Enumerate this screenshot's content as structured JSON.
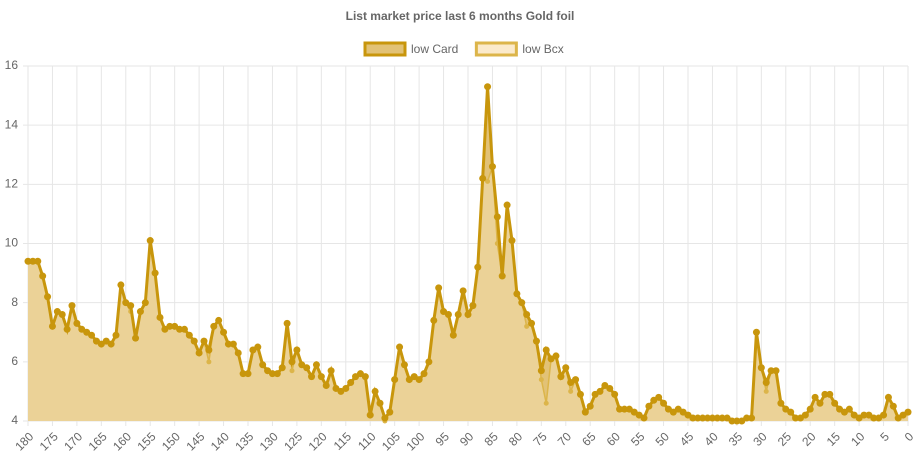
{
  "chart_data": {
    "type": "line",
    "title": "List market price last 6 months Gold foil",
    "x": [
      180,
      179,
      178,
      177,
      176,
      175,
      174,
      173,
      172,
      171,
      170,
      169,
      168,
      167,
      166,
      165,
      164,
      163,
      162,
      161,
      160,
      159,
      158,
      157,
      156,
      155,
      154,
      153,
      152,
      151,
      150,
      149,
      148,
      147,
      146,
      145,
      144,
      143,
      142,
      141,
      140,
      139,
      138,
      137,
      136,
      135,
      134,
      133,
      132,
      131,
      130,
      129,
      128,
      127,
      126,
      125,
      124,
      123,
      122,
      121,
      120,
      119,
      118,
      117,
      116,
      115,
      114,
      113,
      112,
      111,
      110,
      109,
      108,
      107,
      106,
      105,
      104,
      103,
      102,
      101,
      100,
      99,
      98,
      97,
      96,
      95,
      94,
      93,
      92,
      91,
      90,
      89,
      88,
      87,
      86,
      85,
      84,
      83,
      82,
      81,
      80,
      79,
      78,
      77,
      76,
      75,
      74,
      73,
      72,
      71,
      70,
      69,
      68,
      67,
      66,
      65,
      64,
      63,
      62,
      61,
      60,
      59,
      58,
      57,
      56,
      55,
      54,
      53,
      52,
      51,
      50,
      49,
      48,
      47,
      46,
      45,
      44,
      43,
      42,
      41,
      40,
      39,
      38,
      37,
      36,
      35,
      34,
      33,
      32,
      31,
      30,
      29,
      28,
      27,
      26,
      25,
      24,
      23,
      22,
      21,
      20,
      19,
      18,
      17,
      16,
      15,
      14,
      13,
      12,
      11,
      10,
      9,
      8,
      7,
      6,
      5,
      4,
      3,
      2,
      1,
      0
    ],
    "xlim": [
      180,
      0
    ],
    "xticks": [
      180,
      175,
      170,
      165,
      160,
      155,
      150,
      145,
      140,
      135,
      130,
      125,
      120,
      115,
      110,
      105,
      100,
      95,
      90,
      85,
      80,
      75,
      70,
      65,
      60,
      55,
      50,
      45,
      40,
      35,
      30,
      25,
      20,
      15,
      10,
      5,
      0
    ],
    "ylim": [
      4,
      16
    ],
    "yticks": [
      4,
      6,
      8,
      10,
      12,
      14,
      16
    ],
    "grid": true,
    "legend": "top",
    "series": [
      {
        "name": "low Card",
        "color": "#c8960c",
        "fill": "#e2c276",
        "values": [
          9.4,
          9.4,
          9.4,
          8.9,
          8.2,
          7.2,
          7.7,
          7.6,
          7.1,
          7.9,
          7.3,
          7.1,
          7.0,
          6.9,
          6.7,
          6.6,
          6.7,
          6.6,
          6.9,
          8.6,
          8.0,
          7.9,
          6.8,
          7.7,
          8.0,
          10.1,
          9.0,
          7.5,
          7.1,
          7.2,
          7.2,
          7.1,
          7.1,
          6.9,
          6.7,
          6.3,
          6.7,
          6.4,
          7.2,
          7.4,
          7.0,
          6.6,
          6.6,
          6.3,
          5.6,
          5.6,
          6.4,
          6.5,
          5.9,
          5.7,
          5.6,
          5.6,
          5.8,
          7.3,
          6.0,
          6.4,
          5.9,
          5.8,
          5.5,
          5.9,
          5.5,
          5.2,
          5.7,
          5.1,
          5.0,
          5.1,
          5.3,
          5.5,
          5.6,
          5.5,
          4.2,
          5.0,
          4.6,
          4.1,
          4.3,
          5.4,
          6.5,
          5.9,
          5.4,
          5.5,
          5.4,
          5.6,
          6.0,
          7.4,
          8.5,
          7.7,
          7.6,
          6.9,
          7.6,
          8.4,
          7.6,
          7.9,
          9.2,
          12.2,
          15.3,
          12.6,
          10.9,
          8.9,
          11.3,
          10.1,
          8.3,
          8.0,
          7.6,
          7.3,
          6.7,
          5.7,
          6.4,
          6.1,
          6.2,
          5.5,
          5.8,
          5.3,
          5.4,
          4.9,
          4.3,
          4.5,
          4.9,
          5.0,
          5.2,
          5.1,
          4.9,
          4.4,
          4.4,
          4.4,
          4.3,
          4.2,
          4.1,
          4.5,
          4.7,
          4.8,
          4.6,
          4.4,
          4.3,
          4.4,
          4.3,
          4.2,
          4.1,
          4.1,
          4.1,
          4.1,
          4.1,
          4.1,
          4.1,
          4.1,
          4.0,
          4.0,
          4.0,
          4.1,
          4.1,
          7.0,
          5.8,
          5.3,
          5.7,
          5.7,
          4.6,
          4.4,
          4.3,
          4.1,
          4.1,
          4.2,
          4.4,
          4.8,
          4.6,
          4.9,
          4.9,
          4.6,
          4.4,
          4.3,
          4.4,
          4.2,
          4.1,
          4.2,
          4.2,
          4.1,
          4.1,
          4.2,
          4.8,
          4.5,
          4.1,
          4.2,
          4.3
        ]
      },
      {
        "name": "low Bcx",
        "color": "#dcb54a",
        "fill": "#fbeacb",
        "values": [
          9.4,
          9.4,
          9.4,
          8.9,
          8.2,
          7.2,
          7.7,
          7.6,
          7.1,
          7.9,
          7.3,
          7.1,
          7.0,
          6.9,
          6.7,
          6.6,
          6.7,
          6.6,
          6.9,
          8.6,
          8.0,
          7.7,
          6.8,
          7.7,
          8.0,
          10.1,
          9.0,
          7.5,
          7.1,
          7.2,
          7.2,
          7.1,
          7.1,
          6.9,
          6.7,
          6.3,
          6.7,
          6.0,
          7.2,
          7.4,
          7.0,
          6.6,
          6.6,
          6.3,
          5.6,
          5.6,
          6.4,
          6.5,
          5.9,
          5.7,
          5.6,
          5.6,
          5.8,
          7.3,
          5.7,
          6.4,
          5.9,
          5.8,
          5.5,
          5.9,
          5.5,
          5.2,
          5.7,
          5.1,
          5.0,
          5.1,
          5.3,
          5.5,
          5.6,
          5.5,
          4.2,
          5.0,
          4.6,
          4.0,
          4.3,
          5.4,
          6.5,
          5.9,
          5.4,
          5.5,
          5.4,
          5.6,
          6.0,
          7.4,
          8.5,
          7.7,
          7.6,
          6.9,
          7.6,
          8.4,
          7.6,
          7.9,
          9.2,
          12.2,
          12.1,
          12.6,
          10.0,
          8.9,
          11.3,
          10.1,
          8.3,
          8.0,
          7.2,
          7.3,
          6.7,
          5.4,
          4.6,
          6.1,
          6.2,
          5.5,
          5.8,
          5.0,
          5.4,
          4.9,
          4.3,
          4.5,
          4.9,
          5.0,
          5.2,
          5.1,
          4.9,
          4.4,
          4.4,
          4.4,
          4.3,
          4.2,
          4.1,
          4.5,
          4.7,
          4.8,
          4.6,
          4.4,
          4.3,
          4.4,
          4.3,
          4.2,
          4.1,
          4.1,
          4.1,
          4.1,
          4.1,
          4.1,
          4.1,
          4.1,
          4.0,
          4.0,
          4.0,
          4.1,
          4.1,
          7.0,
          5.8,
          5.0,
          5.7,
          5.7,
          4.6,
          4.4,
          4.3,
          4.1,
          4.1,
          4.2,
          4.4,
          4.8,
          4.6,
          4.9,
          4.9,
          4.6,
          4.4,
          4.3,
          4.4,
          4.2,
          4.1,
          4.2,
          4.2,
          4.1,
          4.1,
          4.2,
          4.8,
          4.5,
          4.1,
          4.2,
          4.3
        ]
      }
    ]
  }
}
